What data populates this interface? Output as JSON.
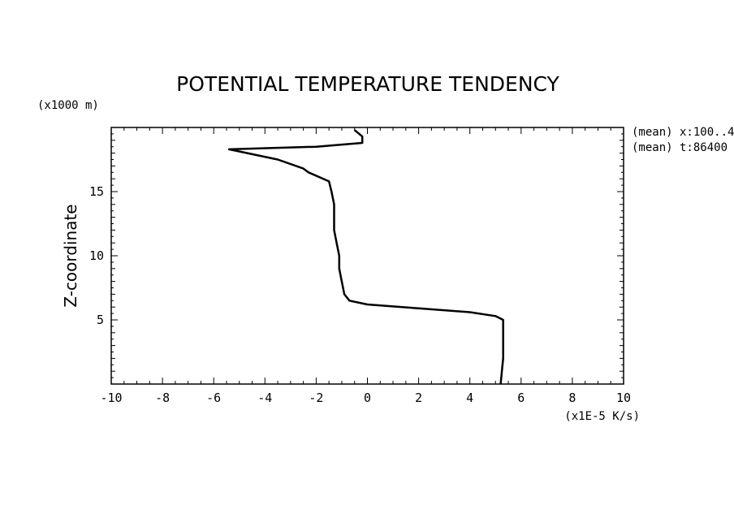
{
  "chart_data": {
    "type": "line",
    "title": "POTENTIAL TEMPERATURE TENDENCY",
    "xlabel": "(x1E-5 K/s)",
    "ylabel": "Z-coordinate",
    "yunit": "(x1000 m)",
    "annotations": [
      "(mean) x:100..4",
      "(mean) t:86400"
    ],
    "xlim": [
      -10,
      10
    ],
    "ylim": [
      0,
      20
    ],
    "x_ticks": [
      "-10",
      "-8",
      "-6",
      "-4",
      "-2",
      "0",
      "2",
      "4",
      "6",
      "8",
      "10"
    ],
    "y_ticks": [
      "5",
      "10",
      "15"
    ],
    "grid": false,
    "series": [
      {
        "color": "#000000",
        "points": [
          [
            5.2,
            0.0
          ],
          [
            5.25,
            1.0
          ],
          [
            5.3,
            2.0
          ],
          [
            5.3,
            3.0
          ],
          [
            5.3,
            4.0
          ],
          [
            5.3,
            5.0
          ],
          [
            5.0,
            5.3
          ],
          [
            4.0,
            5.6
          ],
          [
            2.0,
            5.9
          ],
          [
            0.0,
            6.2
          ],
          [
            -0.7,
            6.5
          ],
          [
            -0.9,
            7.0
          ],
          [
            -1.0,
            8.0
          ],
          [
            -1.1,
            9.0
          ],
          [
            -1.1,
            10.0
          ],
          [
            -1.2,
            11.0
          ],
          [
            -1.3,
            12.0
          ],
          [
            -1.3,
            13.0
          ],
          [
            -1.3,
            14.0
          ],
          [
            -1.4,
            15.0
          ],
          [
            -1.5,
            15.8
          ],
          [
            -2.3,
            16.5
          ],
          [
            -2.5,
            16.8
          ],
          [
            -3.5,
            17.5
          ],
          [
            -5.4,
            18.3
          ],
          [
            -2.0,
            18.5
          ],
          [
            -0.2,
            18.8
          ],
          [
            -0.2,
            19.3
          ],
          [
            -0.5,
            19.8
          ]
        ]
      }
    ]
  }
}
